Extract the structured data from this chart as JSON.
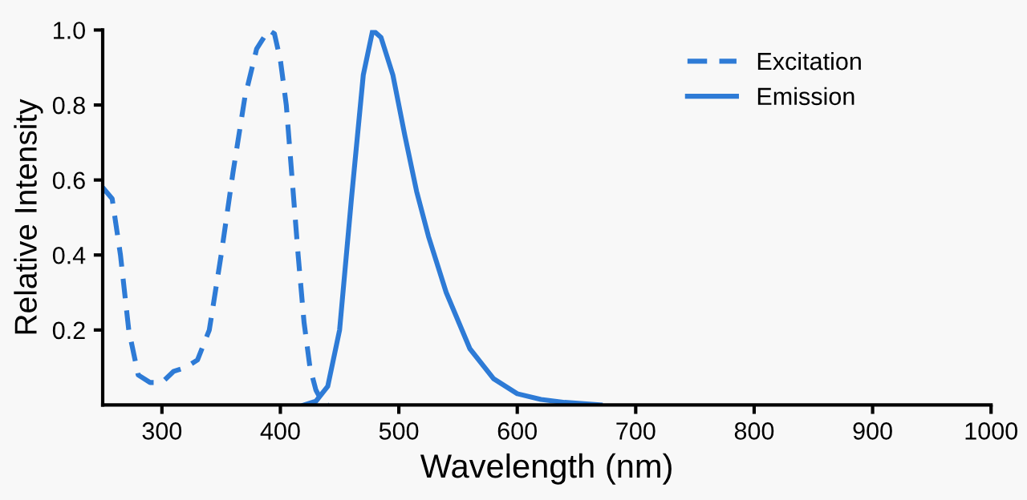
{
  "chart_data": {
    "type": "line",
    "xlabel": "Wavelength (nm)",
    "ylabel": "Relative Intensity",
    "xlim": [
      250,
      1000
    ],
    "xticks": [
      300,
      400,
      500,
      600,
      700,
      800,
      900,
      1000
    ],
    "ylim": [
      0,
      1.0
    ],
    "yticks": [
      0.2,
      0.4,
      0.6,
      0.8,
      {
        "value": 1.0,
        "label": "1.0"
      }
    ],
    "grid": false,
    "legend": "top right",
    "series": [
      {
        "name": "Excitation",
        "color": "#2e7bd6",
        "line_style": "dashed",
        "x": [
          250,
          258,
          265,
          272,
          280,
          290,
          300,
          310,
          320,
          330,
          340,
          350,
          360,
          370,
          380,
          390,
          395,
          400,
          405,
          410,
          415,
          420,
          425,
          430,
          435,
          440
        ],
        "values": [
          0.58,
          0.55,
          0.4,
          0.2,
          0.08,
          0.06,
          0.06,
          0.09,
          0.1,
          0.12,
          0.2,
          0.4,
          0.62,
          0.82,
          0.95,
          1.0,
          0.99,
          0.92,
          0.8,
          0.6,
          0.4,
          0.22,
          0.1,
          0.04,
          0.01,
          0.0
        ]
      },
      {
        "name": "Emission",
        "color": "#2e7bd6",
        "line_style": "solid",
        "x": [
          420,
          430,
          440,
          450,
          460,
          470,
          478,
          485,
          495,
          505,
          515,
          525,
          540,
          560,
          580,
          600,
          620,
          640,
          670
        ],
        "values": [
          0.0,
          0.01,
          0.05,
          0.2,
          0.55,
          0.88,
          1.0,
          0.98,
          0.88,
          0.72,
          0.57,
          0.45,
          0.3,
          0.15,
          0.07,
          0.03,
          0.015,
          0.007,
          0.0
        ]
      }
    ]
  }
}
